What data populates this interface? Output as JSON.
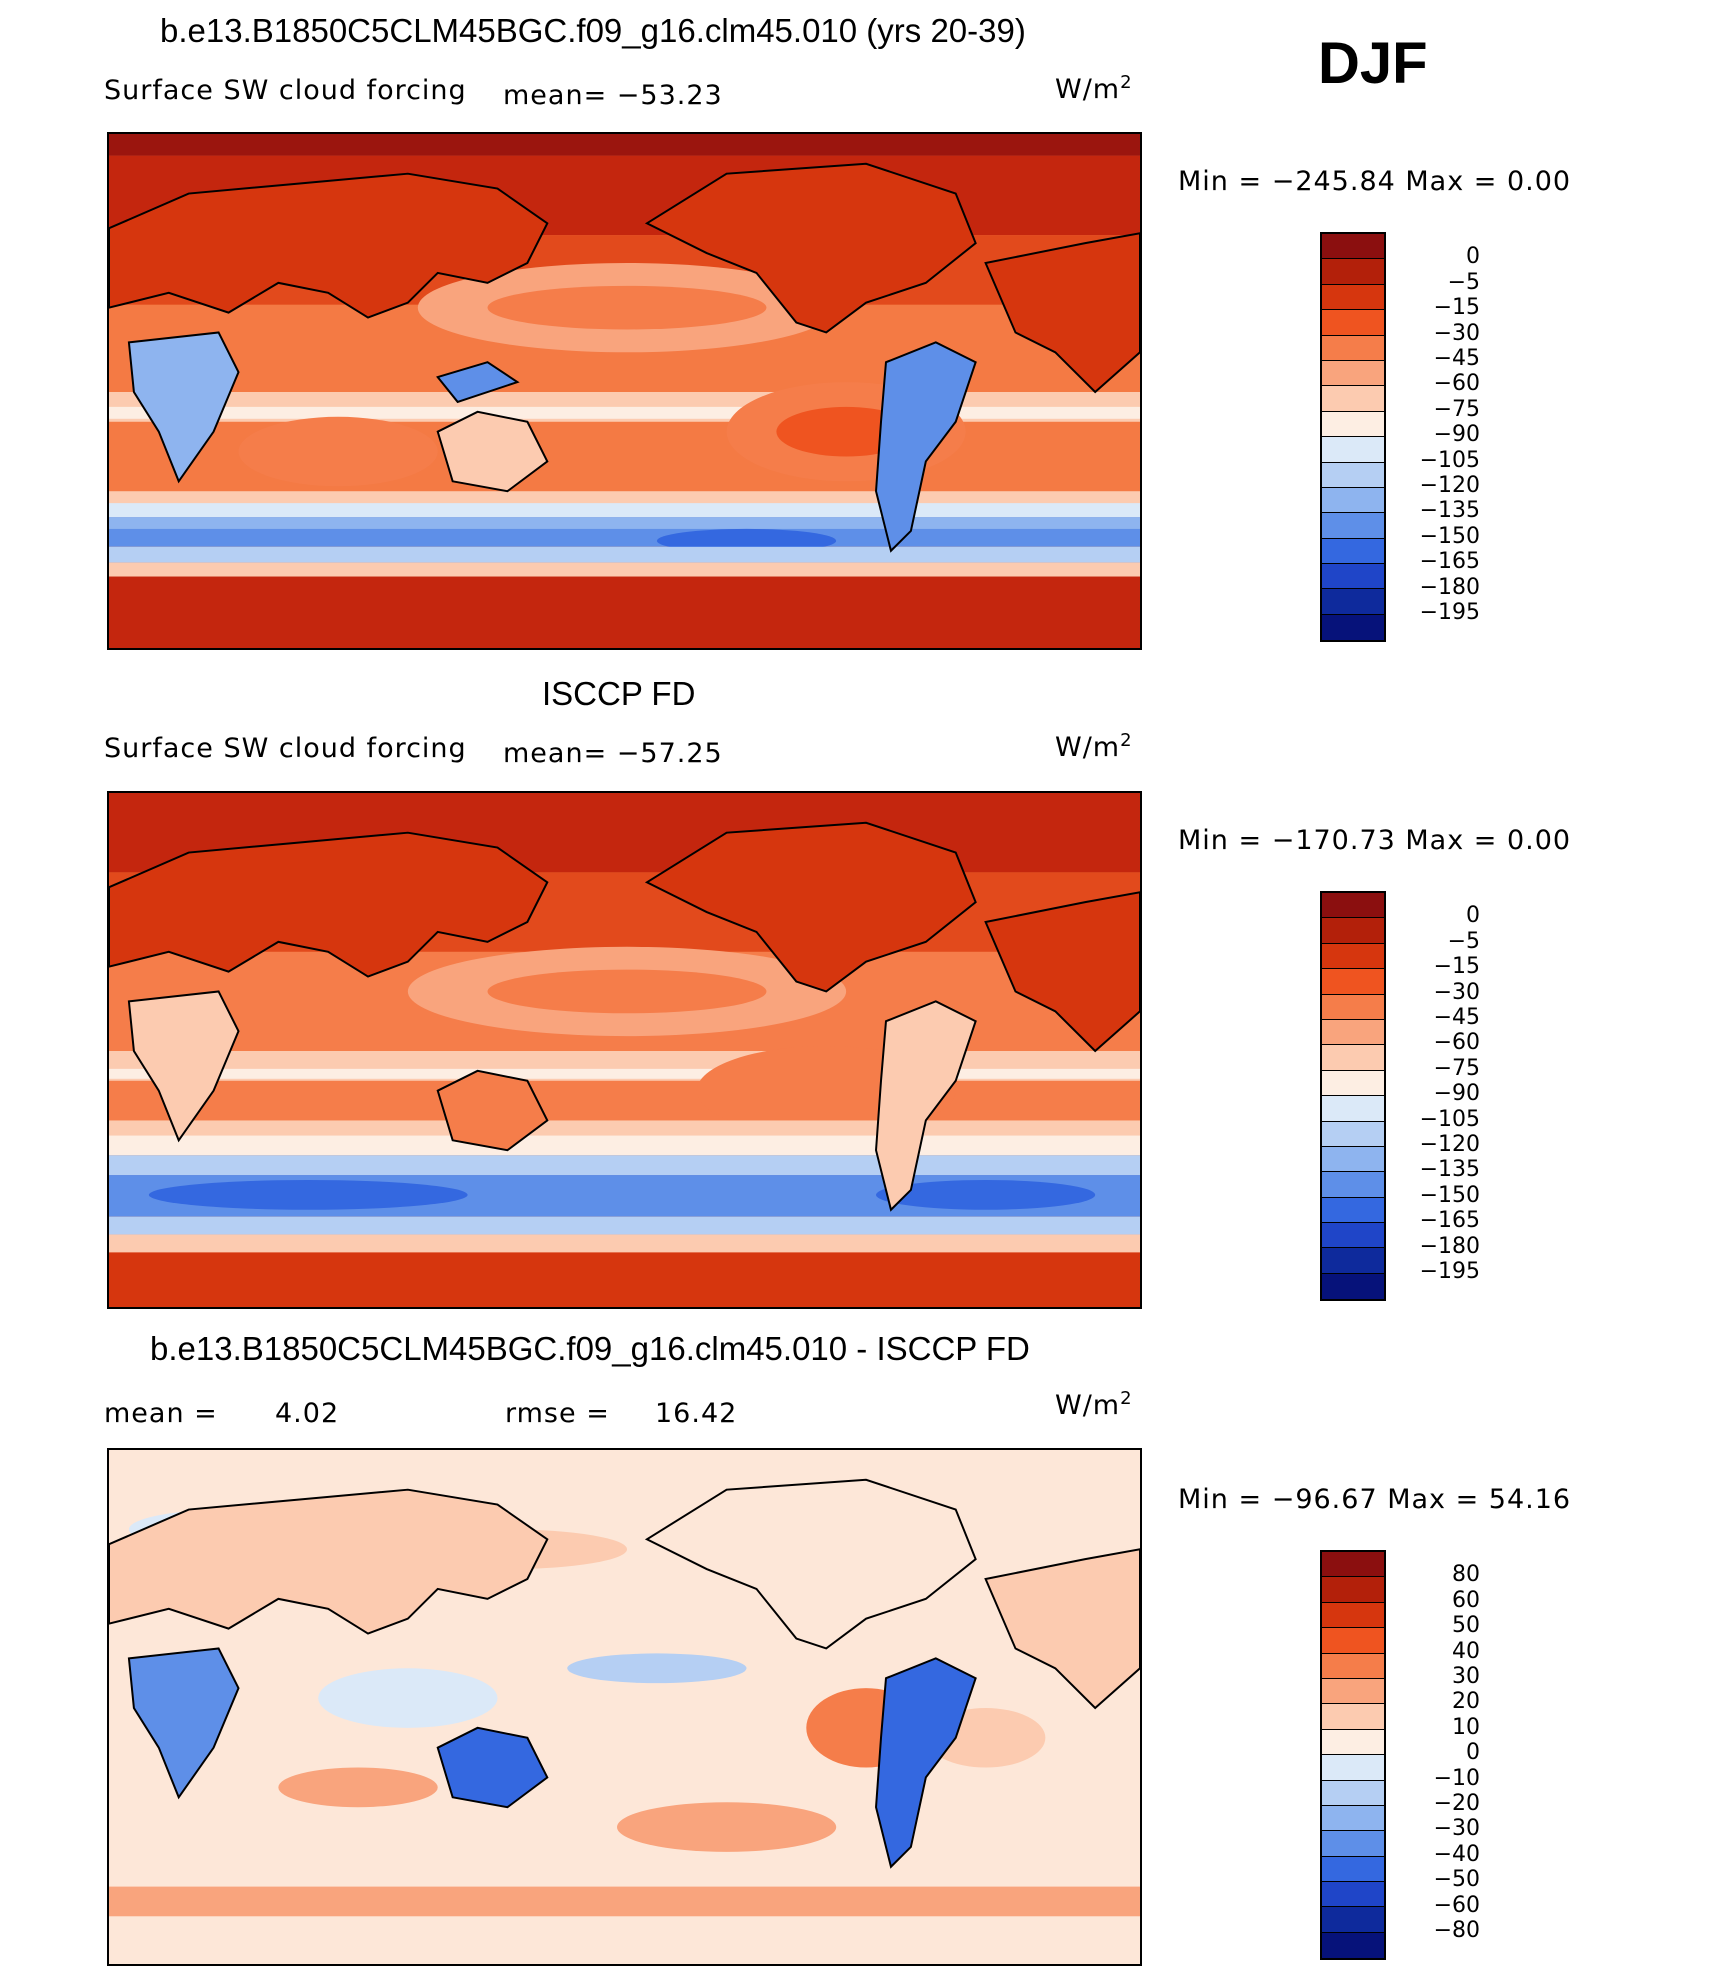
{
  "season": "DJF",
  "panels": [
    {
      "title": "b.e13.B1850C5CLM45BGC.f09_g16.clm45.010 (yrs 20-39)",
      "variable": "Surface SW cloud forcing",
      "stat": "mean=  −53.23",
      "units": "W/m",
      "units_exp": "2",
      "minmax": "Min  =  −245.84  Max  =      0.00",
      "colorbar": {
        "labels": [
          "0",
          "−5",
          "−15",
          "−30",
          "−45",
          "−60",
          "−75",
          "−90",
          "−105",
          "−120",
          "−135",
          "−150",
          "−165",
          "−180",
          "−195"
        ],
        "colors": [
          "#8b0f0f",
          "#b3200a",
          "#d6360e",
          "#ef5420",
          "#f57d4a",
          "#f9a47d",
          "#fccbb0",
          "#fdeee3",
          "#dbe9f8",
          "#b5cff3",
          "#8eb4ef",
          "#5e8fe8",
          "#3468e0",
          "#1f45c8",
          "#0e2a9c",
          "#06127a"
        ]
      },
      "map_description_colors": {
        "land_fill": "#e1441a",
        "ocean_base": "#f3793f"
      }
    },
    {
      "title": "ISCCP FD",
      "variable": "Surface SW cloud forcing",
      "stat": "mean=  −57.25",
      "units": "W/m",
      "units_exp": "2",
      "minmax": "Min  =  −170.73  Max  =      0.00",
      "colorbar": {
        "labels": [
          "0",
          "−5",
          "−15",
          "−30",
          "−45",
          "−60",
          "−75",
          "−90",
          "−105",
          "−120",
          "−135",
          "−150",
          "−165",
          "−180",
          "−195"
        ],
        "colors": [
          "#8b0f0f",
          "#b3200a",
          "#d6360e",
          "#ef5420",
          "#f57d4a",
          "#f9a47d",
          "#fccbb0",
          "#fdeee3",
          "#dbe9f8",
          "#b5cff3",
          "#8eb4ef",
          "#5e8fe8",
          "#3468e0",
          "#1f45c8",
          "#0e2a9c",
          "#06127a"
        ]
      }
    },
    {
      "title": "b.e13.B1850C5CLM45BGC.f09_g16.clm45.010 - ISCCP FD",
      "mean_label": "mean  =",
      "mean_value": "4.02",
      "rmse_label": "rmse  =",
      "rmse_value": "16.42",
      "units": "W/m",
      "units_exp": "2",
      "minmax": "Min  =  −96.67  Max  =   54.16",
      "colorbar": {
        "labels": [
          "80",
          "60",
          "50",
          "40",
          "30",
          "20",
          "10",
          "0",
          "−10",
          "−20",
          "−30",
          "−40",
          "−50",
          "−60",
          "−80"
        ],
        "colors": [
          "#8b0f0f",
          "#b3200a",
          "#d6360e",
          "#ef5420",
          "#f57d4a",
          "#f9a47d",
          "#fccbb0",
          "#fdeee3",
          "#dbe9f8",
          "#b5cff3",
          "#8eb4ef",
          "#5e8fe8",
          "#3468e0",
          "#1f45c8",
          "#0e2a9c",
          "#06127a"
        ]
      }
    }
  ]
}
